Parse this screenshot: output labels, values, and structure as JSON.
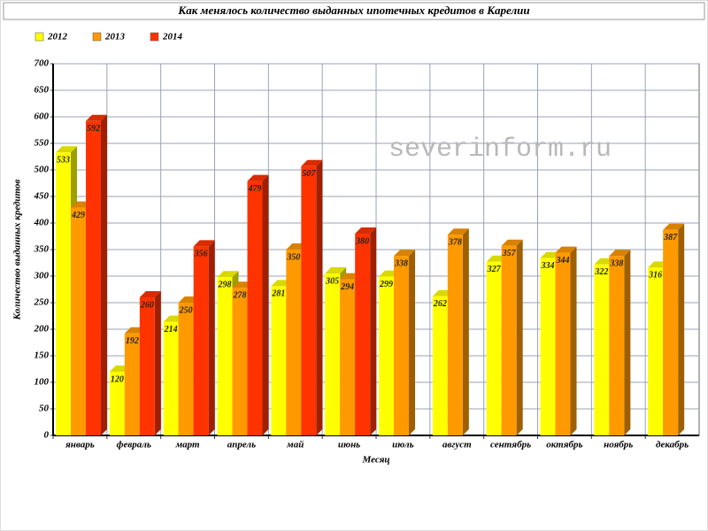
{
  "chart_data": {
    "type": "bar3d",
    "title": "Как менялось количество выданных ипотечных кредитов в Карелии",
    "annotation": "severinform.ru",
    "x_label": "Месяц",
    "y_label": "Количество выданных кредитов",
    "categories": [
      "январь",
      "февраль",
      "март",
      "апрель",
      "май",
      "июнь",
      "июль",
      "август",
      "сентябрь",
      "октябрь",
      "ноябрь",
      "декабрь"
    ],
    "series": [
      {
        "name": "2012",
        "color": "#ffff00",
        "values": [
          533,
          120,
          214,
          298,
          281,
          305,
          299,
          262,
          327,
          334,
          322,
          316
        ]
      },
      {
        "name": "2013",
        "color": "#ff9900",
        "values": [
          429,
          192,
          250,
          278,
          350,
          294,
          338,
          378,
          357,
          344,
          338,
          387
        ]
      },
      {
        "name": "2014",
        "color": "#ff3300",
        "values": [
          592,
          260,
          356,
          479,
          507,
          380,
          null,
          null,
          null,
          null,
          null,
          null
        ]
      }
    ],
    "ylim": [
      0,
      700
    ],
    "yticks": [
      0,
      50,
      100,
      150,
      200,
      250,
      300,
      350,
      400,
      450,
      500,
      550,
      600,
      650,
      700
    ],
    "grid": true
  }
}
